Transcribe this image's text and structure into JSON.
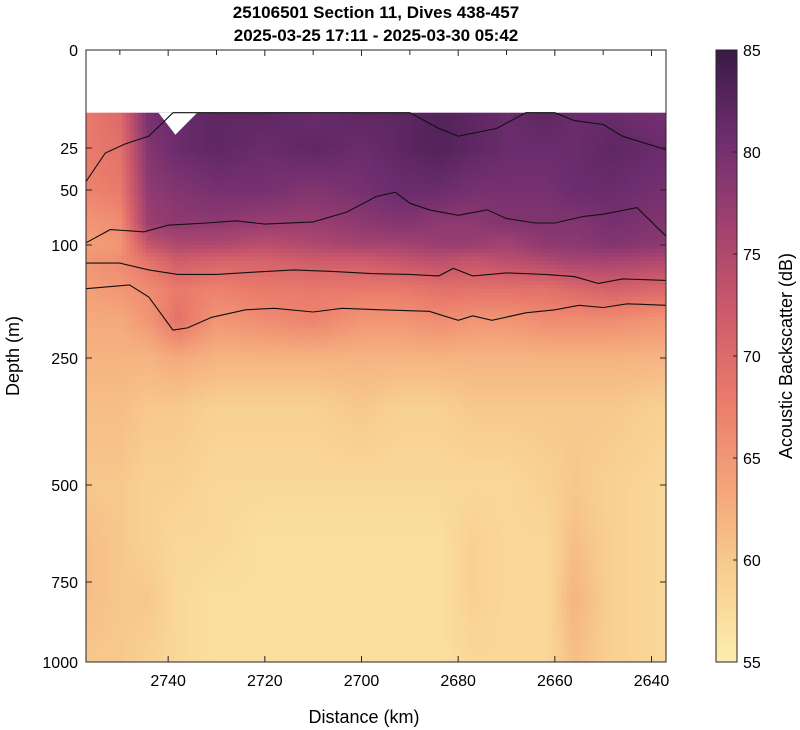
{
  "chart_data": {
    "type": "heatmap",
    "title": [
      "25106501 Section 11, Dives 438-457",
      "2025-03-25 17:11 - 2025-03-30 05:42"
    ],
    "xlabel": "Distance (km)",
    "ylabel": "Depth (m)",
    "colorbar_label": "Acoustic Backscatter (dB)",
    "x_direction": "reversed",
    "xlim": [
      2637,
      2757
    ],
    "x_ticks": [
      2740,
      2720,
      2700,
      2680,
      2660,
      2640
    ],
    "y_ticks": [
      0,
      25,
      50,
      100,
      250,
      500,
      750,
      1000
    ],
    "y_scale": "compressed-upper (non-linear)",
    "ylim": [
      0,
      1000
    ],
    "colorbar_ticks": [
      55,
      60,
      65,
      70,
      75,
      80,
      85
    ],
    "clim": [
      55,
      85
    ],
    "colormap": [
      "#fcedb0",
      "#f8cf90",
      "#f4a47a",
      "#ea7b6b",
      "#cd5a6a",
      "#a04170",
      "#6e2d6f",
      "#3a1a46"
    ],
    "data_top_depth": 16,
    "grid": false,
    "distance_km": [
      2757,
      2750,
      2744,
      2738,
      2730,
      2720,
      2710,
      2700,
      2692,
      2684,
      2677,
      2670,
      2662,
      2656,
      2648,
      2637
    ],
    "layers": [
      {
        "depth_m": 16,
        "values_db": [
          68,
          70,
          80,
          81,
          82,
          82,
          81,
          82,
          82,
          83,
          82,
          81,
          82,
          81,
          81,
          80
        ]
      },
      {
        "depth_m": 25,
        "values_db": [
          68,
          69,
          79,
          81,
          82,
          81,
          82,
          81,
          82,
          83,
          82,
          81,
          81,
          81,
          82,
          81
        ]
      },
      {
        "depth_m": 50,
        "values_db": [
          67,
          68,
          78,
          79,
          80,
          80,
          79,
          80,
          81,
          81,
          80,
          80,
          80,
          81,
          81,
          80
        ]
      },
      {
        "depth_m": 80,
        "values_db": [
          65,
          66,
          77,
          78,
          78,
          77,
          77,
          78,
          79,
          78,
          78,
          79,
          79,
          79,
          80,
          79
        ]
      },
      {
        "depth_m": 100,
        "values_db": [
          64,
          65,
          73,
          75,
          75,
          74,
          75,
          76,
          76,
          77,
          77,
          76,
          78,
          78,
          79,
          78
        ]
      },
      {
        "depth_m": 120,
        "values_db": [
          65,
          66,
          69,
          72,
          71,
          71,
          72,
          72,
          73,
          74,
          73,
          74,
          75,
          76,
          76,
          75
        ]
      },
      {
        "depth_m": 160,
        "values_db": [
          64,
          65,
          66,
          68,
          67,
          68,
          68,
          68,
          68,
          69,
          69,
          69,
          69,
          70,
          71,
          70
        ]
      },
      {
        "depth_m": 200,
        "values_db": [
          63,
          63,
          65,
          69,
          65,
          66,
          67,
          65,
          65,
          66,
          65,
          65,
          66,
          66,
          66,
          65
        ]
      },
      {
        "depth_m": 250,
        "values_db": [
          62,
          62,
          62,
          63,
          62,
          62,
          62,
          62,
          62,
          62,
          62,
          62,
          62,
          62,
          62,
          62
        ]
      },
      {
        "depth_m": 350,
        "values_db": [
          61,
          61,
          60,
          60,
          59,
          59,
          59,
          60,
          59,
          59,
          60,
          60,
          60,
          60,
          60,
          59
        ]
      },
      {
        "depth_m": 500,
        "values_db": [
          60,
          60,
          59,
          59,
          58,
          58,
          58,
          58,
          58,
          58,
          58,
          58,
          59,
          60,
          59,
          58
        ]
      },
      {
        "depth_m": 650,
        "values_db": [
          61,
          60,
          59,
          58,
          58,
          57,
          57,
          57,
          57,
          57,
          59,
          58,
          58,
          61,
          59,
          58
        ]
      },
      {
        "depth_m": 800,
        "values_db": [
          61,
          60,
          60,
          58,
          57,
          57,
          57,
          57,
          57,
          57,
          59,
          58,
          58,
          62,
          59,
          58
        ]
      },
      {
        "depth_m": 1000,
        "values_db": [
          60,
          60,
          59,
          58,
          57,
          57,
          57,
          57,
          57,
          57,
          58,
          58,
          58,
          61,
          59,
          58
        ]
      }
    ],
    "contours": [
      {
        "name": "80 dB",
        "points": [
          [
            2757,
            45
          ],
          [
            2753,
            28
          ],
          [
            2749,
            24
          ],
          [
            2744,
            22
          ],
          [
            2739,
            16
          ],
          [
            2737,
            16
          ],
          [
            2731,
            16
          ],
          [
            2725,
            16
          ],
          [
            2720,
            16
          ],
          [
            2712,
            16
          ],
          [
            2700,
            16
          ],
          [
            2690,
            16
          ],
          [
            2684,
            20
          ],
          [
            2680,
            22
          ],
          [
            2672,
            20
          ],
          [
            2666,
            16
          ],
          [
            2660,
            16
          ],
          [
            2656,
            18
          ],
          [
            2650,
            19
          ],
          [
            2646,
            22
          ],
          [
            2637,
            26
          ]
        ]
      },
      {
        "name": "75 dB",
        "points": [
          [
            2757,
            98
          ],
          [
            2752,
            86
          ],
          [
            2745,
            88
          ],
          [
            2740,
            82
          ],
          [
            2732,
            80
          ],
          [
            2726,
            78
          ],
          [
            2720,
            81
          ],
          [
            2710,
            79
          ],
          [
            2703,
            70
          ],
          [
            2697,
            56
          ],
          [
            2693,
            52
          ],
          [
            2690,
            62
          ],
          [
            2686,
            68
          ],
          [
            2680,
            73
          ],
          [
            2674,
            68
          ],
          [
            2670,
            76
          ],
          [
            2664,
            80
          ],
          [
            2660,
            80
          ],
          [
            2654,
            74
          ],
          [
            2650,
            72
          ],
          [
            2643,
            66
          ],
          [
            2637,
            92
          ]
        ]
      },
      {
        "name": "70 dB",
        "points": [
          [
            2757,
            124
          ],
          [
            2750,
            124
          ],
          [
            2744,
            133
          ],
          [
            2738,
            139
          ],
          [
            2730,
            139
          ],
          [
            2722,
            136
          ],
          [
            2714,
            133
          ],
          [
            2706,
            135
          ],
          [
            2698,
            138
          ],
          [
            2690,
            139
          ],
          [
            2684,
            141
          ],
          [
            2681,
            131
          ],
          [
            2677,
            141
          ],
          [
            2670,
            137
          ],
          [
            2662,
            139
          ],
          [
            2656,
            142
          ],
          [
            2651,
            151
          ],
          [
            2646,
            145
          ],
          [
            2637,
            147
          ]
        ]
      },
      {
        "name": "65 dB",
        "points": [
          [
            2757,
            158
          ],
          [
            2748,
            153
          ],
          [
            2744,
            169
          ],
          [
            2739,
            213
          ],
          [
            2736,
            210
          ],
          [
            2731,
            196
          ],
          [
            2724,
            186
          ],
          [
            2718,
            184
          ],
          [
            2710,
            189
          ],
          [
            2704,
            184
          ],
          [
            2696,
            186
          ],
          [
            2686,
            188
          ],
          [
            2680,
            200
          ],
          [
            2677,
            194
          ],
          [
            2673,
            200
          ],
          [
            2666,
            190
          ],
          [
            2660,
            186
          ],
          [
            2655,
            180
          ],
          [
            2650,
            183
          ],
          [
            2645,
            178
          ],
          [
            2637,
            180
          ]
        ]
      }
    ]
  }
}
